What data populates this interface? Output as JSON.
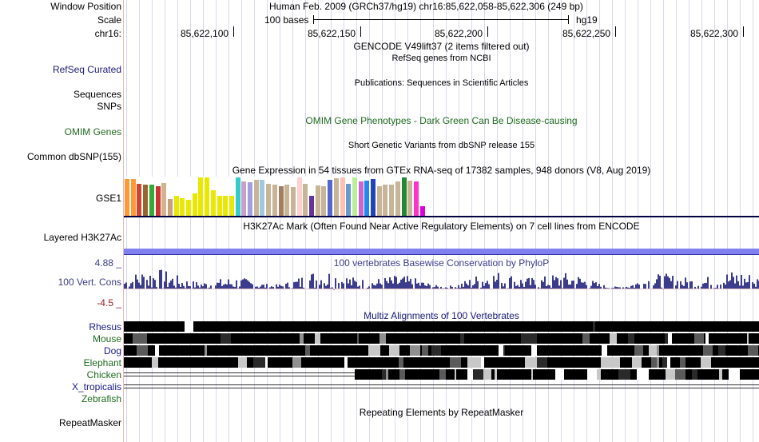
{
  "header": {
    "window_position_label": "Window Position",
    "scale_label": "Scale",
    "chr_label": "chr16:",
    "assembly_info": "Human Feb. 2009 (GRCh37/hg19)   chr16:85,622,058-85,622,306 (249 bp)",
    "scale_text": "100 bases",
    "scale_db": "hg19",
    "positions": [
      "85,622,100",
      "85,622,150",
      "85,622,200",
      "85,622,250",
      "85,622,300"
    ]
  },
  "tracks": {
    "gencode_title": "GENCODE V49lift37 (2 items filtered out)",
    "refseq_subtitle": "RefSeq genes from NCBI",
    "refseq_label": "RefSeq Curated",
    "publications_title": "Publications: Sequences in Scientific Articles",
    "sequences_label": "Sequences",
    "snps_label": "SNPs",
    "omim_label": "OMIM Genes",
    "omim_title": "OMIM Gene Phenotypes - Dark Green Can Be Disease-causing",
    "dbsnp_title": "Short Genetic Variants from dbSNP release 155",
    "dbsnp_label": "Common dbSNP(155)",
    "gtex_title": "Gene Expression in 54 tissues from GTEx RNA-seq of 17382 samples, 948 donors (V8, Aug 2019)",
    "gse1_label": "GSE1",
    "h3k27ac_title": "H3K27Ac Mark (Often Found Near Active Regulatory Elements) on 7 cell lines from ENCODE",
    "h3k27ac_label": "Layered H3K27Ac",
    "cons_max": "4.88 _",
    "cons_min": "-4.5 _",
    "cons_label": "100 Vert. Cons",
    "cons_title": "100 vertebrates Basewise Conservation by PhyloP",
    "multiz_title": "Multiz Alignments of 100 Vertebrates",
    "species": [
      "Rhesus",
      "Mouse",
      "Dog",
      "Elephant",
      "Chicken",
      "X_tropicalis",
      "Zebrafish"
    ],
    "repeat_label": "RepeatMasker",
    "repeat_title": "Repeating Elements by RepeatMasker"
  },
  "colors": {
    "refseq": "#1a1a7a",
    "omim": "#1f6b1f",
    "conservation": "#3c3c8c",
    "conservation_neg": "#8c1e1e",
    "mammal": "#1a1a8c",
    "nonmammal": "#1f6b1f"
  },
  "gtex_colors": [
    "#ff9933",
    "#ff9933",
    "#cc4433",
    "#996633",
    "#33aa33",
    "#cc3333",
    "#d2b48c",
    "#c8a080",
    "#e8e800",
    "#e8e800",
    "#e8e800",
    "#e8e800",
    "#e8e800",
    "#e8e800",
    "#e8e800",
    "#e8e800",
    "#e8e800",
    "#e8e800",
    "#33cccc",
    "#c8a0c8",
    "#a0a0e0",
    "#c8b496",
    "#a0c8e0",
    "#c8b496",
    "#c8b496",
    "#a08060",
    "#c8b496",
    "#c8b496",
    "#ffd0d0",
    "#c8b496",
    "#663399",
    "#c8b496",
    "#c8b496",
    "#5566cc",
    "#c8b496",
    "#ffc0b4",
    "#6699cc",
    "#bbee99",
    "#cc66cc",
    "#2288ee",
    "#2244bb",
    "#c8b496",
    "#c8b496",
    "#c8b496",
    "#c8b496",
    "#228833",
    "#c8b496",
    "#ff33cc",
    "#dd00dd"
  ],
  "gtex_values": [
    0.93,
    0.93,
    0.82,
    0.8,
    0.8,
    0.76,
    0.84,
    0.42,
    0.5,
    0.44,
    0.4,
    0.57,
    0.98,
    0.98,
    0.66,
    0.5,
    0.5,
    0.5,
    0.98,
    0.87,
    0.86,
    0.92,
    0.92,
    0.82,
    0.79,
    0.76,
    0.8,
    0.73,
    0.98,
    0.82,
    0.51,
    0.78,
    0.75,
    0.92,
    0.96,
    0.98,
    0.82,
    0.98,
    0.88,
    0.9,
    0.93,
    0.76,
    0.8,
    0.8,
    0.87,
    0.98,
    0.89,
    0.87,
    0.25
  ]
}
